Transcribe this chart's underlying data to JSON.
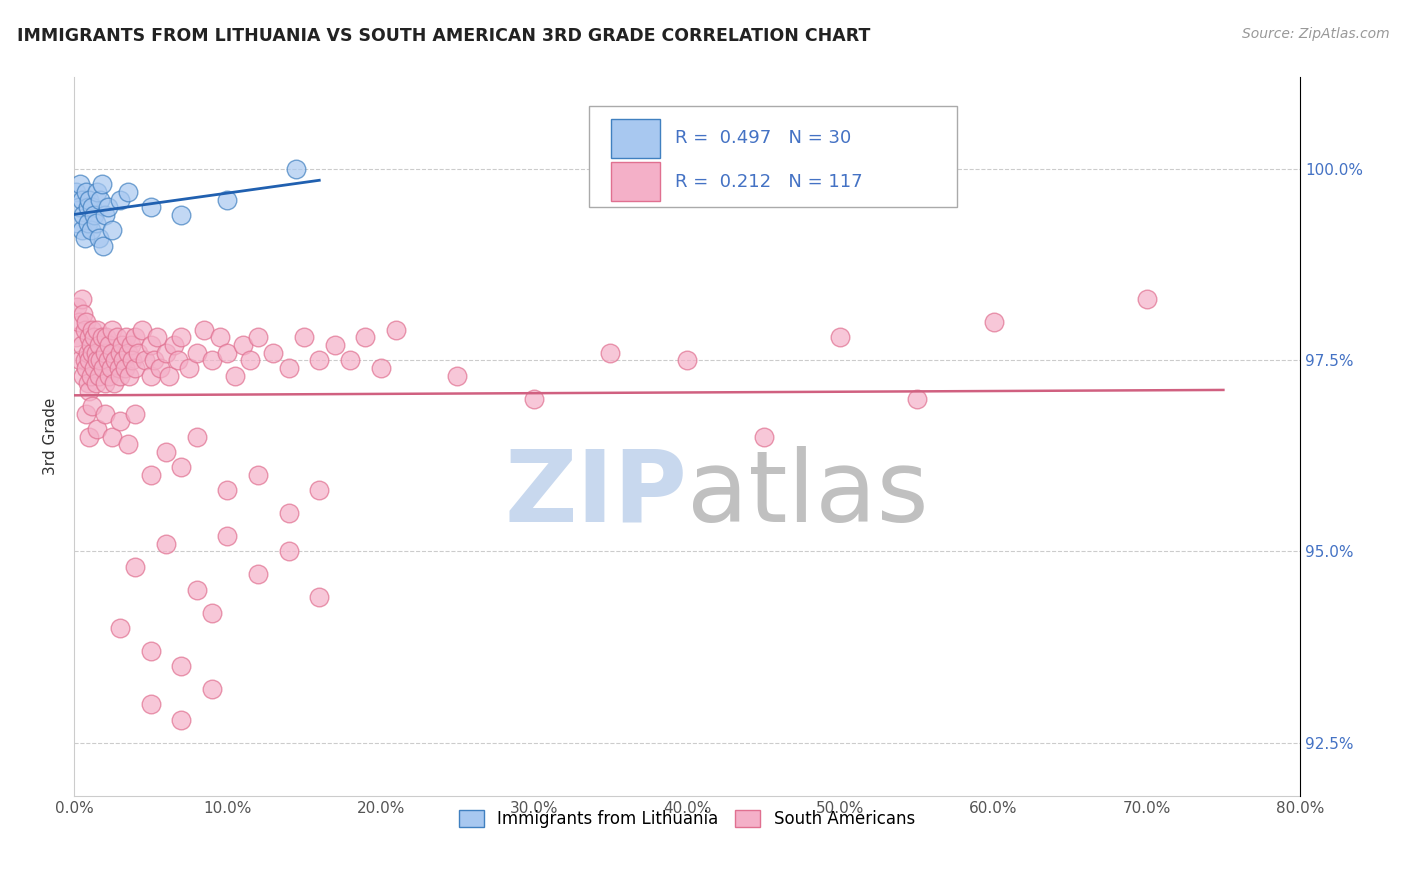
{
  "title": "IMMIGRANTS FROM LITHUANIA VS SOUTH AMERICAN 3RD GRADE CORRELATION CHART",
  "source": "Source: ZipAtlas.com",
  "xlabel_ticks": [
    0.0,
    10.0,
    20.0,
    30.0,
    40.0,
    50.0,
    60.0,
    70.0,
    80.0
  ],
  "ylabel_ticks": [
    92.5,
    95.0,
    97.5,
    100.0
  ],
  "xmin": 0.0,
  "xmax": 80.0,
  "ymin": 91.8,
  "ymax": 101.2,
  "ylabel": "3rd Grade",
  "blue_R": 0.497,
  "blue_N": 30,
  "pink_R": 0.212,
  "pink_N": 117,
  "blue_color": "#A8C8F0",
  "pink_color": "#F4B0C8",
  "blue_edge_color": "#4080C0",
  "pink_edge_color": "#E07090",
  "blue_line_color": "#2060B0",
  "pink_line_color": "#D06080",
  "watermark_zip_color": "#C8D8EE",
  "watermark_atlas_color": "#C0C0C0",
  "legend_text_color": "#4472C4",
  "blue_scatter": [
    [
      0.1,
      99.7
    ],
    [
      0.2,
      99.3
    ],
    [
      0.3,
      99.5
    ],
    [
      0.4,
      99.8
    ],
    [
      0.5,
      99.2
    ],
    [
      0.5,
      99.6
    ],
    [
      0.6,
      99.4
    ],
    [
      0.7,
      99.1
    ],
    [
      0.8,
      99.7
    ],
    [
      0.9,
      99.3
    ],
    [
      0.9,
      99.5
    ],
    [
      1.0,
      99.6
    ],
    [
      1.1,
      99.2
    ],
    [
      1.2,
      99.5
    ],
    [
      1.3,
      99.4
    ],
    [
      1.4,
      99.3
    ],
    [
      1.5,
      99.7
    ],
    [
      1.6,
      99.1
    ],
    [
      1.7,
      99.6
    ],
    [
      1.8,
      99.8
    ],
    [
      1.9,
      99.0
    ],
    [
      2.0,
      99.4
    ],
    [
      2.2,
      99.5
    ],
    [
      2.5,
      99.2
    ],
    [
      3.0,
      99.6
    ],
    [
      3.5,
      99.7
    ],
    [
      5.0,
      99.5
    ],
    [
      7.0,
      99.4
    ],
    [
      10.0,
      99.6
    ],
    [
      14.5,
      100.0
    ]
  ],
  "pink_scatter": [
    [
      0.1,
      97.8
    ],
    [
      0.2,
      98.2
    ],
    [
      0.3,
      98.0
    ],
    [
      0.4,
      97.5
    ],
    [
      0.5,
      98.3
    ],
    [
      0.5,
      97.7
    ],
    [
      0.6,
      97.3
    ],
    [
      0.6,
      98.1
    ],
    [
      0.7,
      97.9
    ],
    [
      0.7,
      97.5
    ],
    [
      0.8,
      98.0
    ],
    [
      0.8,
      97.4
    ],
    [
      0.9,
      97.6
    ],
    [
      0.9,
      97.2
    ],
    [
      1.0,
      97.8
    ],
    [
      1.0,
      97.5
    ],
    [
      1.0,
      97.1
    ],
    [
      1.1,
      97.7
    ],
    [
      1.1,
      97.3
    ],
    [
      1.2,
      97.9
    ],
    [
      1.2,
      97.6
    ],
    [
      1.3,
      97.4
    ],
    [
      1.3,
      97.8
    ],
    [
      1.4,
      97.2
    ],
    [
      1.4,
      97.6
    ],
    [
      1.5,
      97.9
    ],
    [
      1.5,
      97.5
    ],
    [
      1.6,
      97.3
    ],
    [
      1.6,
      97.7
    ],
    [
      1.7,
      97.5
    ],
    [
      1.8,
      97.8
    ],
    [
      1.9,
      97.4
    ],
    [
      2.0,
      97.6
    ],
    [
      2.0,
      97.2
    ],
    [
      2.1,
      97.8
    ],
    [
      2.2,
      97.5
    ],
    [
      2.3,
      97.3
    ],
    [
      2.3,
      97.7
    ],
    [
      2.4,
      97.4
    ],
    [
      2.5,
      97.6
    ],
    [
      2.5,
      97.9
    ],
    [
      2.6,
      97.2
    ],
    [
      2.7,
      97.5
    ],
    [
      2.8,
      97.8
    ],
    [
      2.9,
      97.4
    ],
    [
      3.0,
      97.6
    ],
    [
      3.0,
      97.3
    ],
    [
      3.1,
      97.7
    ],
    [
      3.2,
      97.5
    ],
    [
      3.3,
      97.4
    ],
    [
      3.4,
      97.8
    ],
    [
      3.5,
      97.6
    ],
    [
      3.6,
      97.3
    ],
    [
      3.7,
      97.7
    ],
    [
      3.8,
      97.5
    ],
    [
      4.0,
      97.4
    ],
    [
      4.0,
      97.8
    ],
    [
      4.2,
      97.6
    ],
    [
      4.4,
      97.9
    ],
    [
      4.6,
      97.5
    ],
    [
      5.0,
      97.3
    ],
    [
      5.0,
      97.7
    ],
    [
      5.2,
      97.5
    ],
    [
      5.4,
      97.8
    ],
    [
      5.6,
      97.4
    ],
    [
      6.0,
      97.6
    ],
    [
      6.2,
      97.3
    ],
    [
      6.5,
      97.7
    ],
    [
      6.8,
      97.5
    ],
    [
      7.0,
      97.8
    ],
    [
      7.5,
      97.4
    ],
    [
      8.0,
      97.6
    ],
    [
      8.5,
      97.9
    ],
    [
      9.0,
      97.5
    ],
    [
      9.5,
      97.8
    ],
    [
      10.0,
      97.6
    ],
    [
      10.5,
      97.3
    ],
    [
      11.0,
      97.7
    ],
    [
      11.5,
      97.5
    ],
    [
      12.0,
      97.8
    ],
    [
      13.0,
      97.6
    ],
    [
      14.0,
      97.4
    ],
    [
      15.0,
      97.8
    ],
    [
      16.0,
      97.5
    ],
    [
      17.0,
      97.7
    ],
    [
      18.0,
      97.5
    ],
    [
      19.0,
      97.8
    ],
    [
      20.0,
      97.4
    ],
    [
      21.0,
      97.9
    ],
    [
      0.8,
      96.8
    ],
    [
      1.0,
      96.5
    ],
    [
      1.2,
      96.9
    ],
    [
      1.5,
      96.6
    ],
    [
      2.0,
      96.8
    ],
    [
      2.5,
      96.5
    ],
    [
      3.0,
      96.7
    ],
    [
      3.5,
      96.4
    ],
    [
      4.0,
      96.8
    ],
    [
      5.0,
      96.0
    ],
    [
      6.0,
      96.3
    ],
    [
      7.0,
      96.1
    ],
    [
      8.0,
      96.5
    ],
    [
      10.0,
      95.8
    ],
    [
      12.0,
      96.0
    ],
    [
      14.0,
      95.5
    ],
    [
      16.0,
      95.8
    ],
    [
      4.0,
      94.8
    ],
    [
      6.0,
      95.1
    ],
    [
      8.0,
      94.5
    ],
    [
      10.0,
      95.2
    ],
    [
      12.0,
      94.7
    ],
    [
      14.0,
      95.0
    ],
    [
      16.0,
      94.4
    ],
    [
      3.0,
      94.0
    ],
    [
      5.0,
      93.7
    ],
    [
      7.0,
      93.5
    ],
    [
      9.0,
      94.2
    ],
    [
      5.0,
      93.0
    ],
    [
      7.0,
      92.8
    ],
    [
      9.0,
      93.2
    ],
    [
      30.0,
      97.0
    ],
    [
      40.0,
      97.5
    ],
    [
      50.0,
      97.8
    ],
    [
      60.0,
      98.0
    ],
    [
      70.0,
      98.3
    ],
    [
      45.0,
      96.5
    ],
    [
      55.0,
      97.0
    ],
    [
      25.0,
      97.3
    ],
    [
      35.0,
      97.6
    ]
  ]
}
